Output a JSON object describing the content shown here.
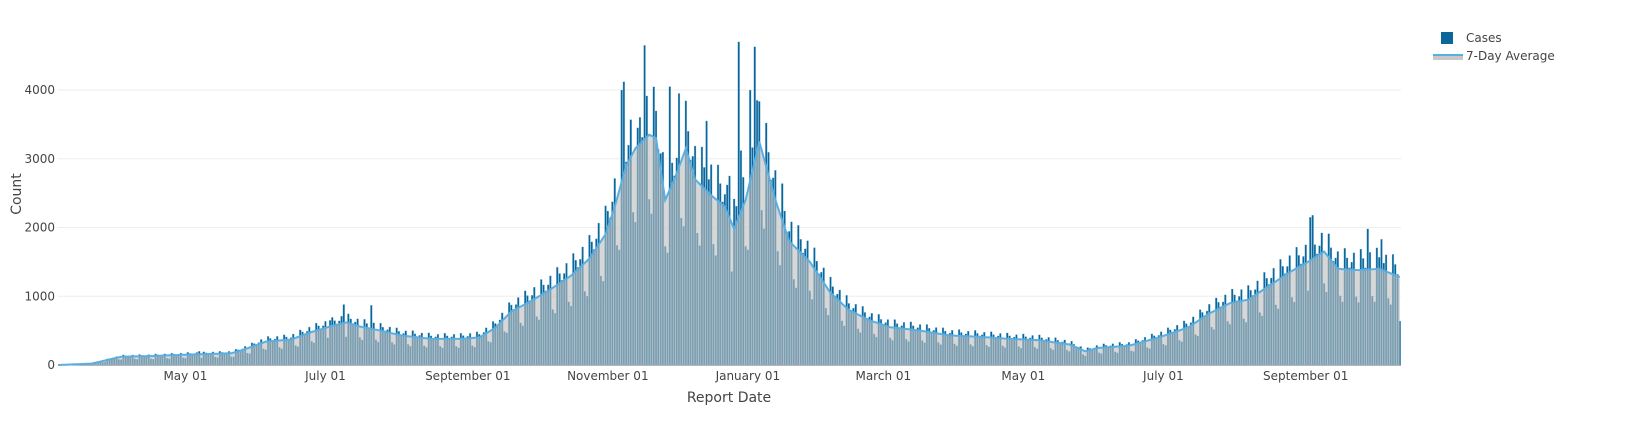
{
  "chart_data": {
    "type": "bar",
    "xlabel": "Report Date",
    "ylabel": "Count",
    "ylim": [
      0,
      4900
    ],
    "grid": true,
    "legend_position": "top-right",
    "start_date": "2020-03-07",
    "num_days": 585,
    "y_ticks": [
      0,
      1000,
      2000,
      3000,
      4000
    ],
    "x_ticks": [
      {
        "label": "May 01",
        "date": "2020-05-01"
      },
      {
        "label": "July 01",
        "date": "2020-07-01"
      },
      {
        "label": "September 01",
        "date": "2020-09-01"
      },
      {
        "label": "November 01",
        "date": "2020-11-01"
      },
      {
        "label": "January 01",
        "date": "2021-01-01"
      },
      {
        "label": "March 01",
        "date": "2021-03-01"
      },
      {
        "label": "May 01",
        "date": "2021-05-01"
      },
      {
        "label": "July 01",
        "date": "2021-07-01"
      },
      {
        "label": "September 01",
        "date": "2021-09-01"
      }
    ],
    "series": [
      {
        "name": "Cases",
        "kind": "bar",
        "color": "#0b6699"
      },
      {
        "name": "7-Day Average",
        "kind": "area-line",
        "color": "#5aaee0",
        "fill": "#c8c8c8"
      }
    ],
    "average_knots_day_value": [
      [
        0,
        0
      ],
      [
        14,
        20
      ],
      [
        18,
        50
      ],
      [
        27,
        120
      ],
      [
        40,
        130
      ],
      [
        55,
        150
      ],
      [
        75,
        170
      ],
      [
        81,
        230
      ],
      [
        90,
        340
      ],
      [
        101,
        370
      ],
      [
        110,
        480
      ],
      [
        118,
        560
      ],
      [
        125,
        620
      ],
      [
        131,
        560
      ],
      [
        140,
        500
      ],
      [
        149,
        430
      ],
      [
        162,
        380
      ],
      [
        175,
        380
      ],
      [
        183,
        400
      ],
      [
        190,
        540
      ],
      [
        197,
        780
      ],
      [
        205,
        920
      ],
      [
        214,
        1100
      ],
      [
        223,
        1300
      ],
      [
        231,
        1550
      ],
      [
        238,
        1900
      ],
      [
        242,
        2300
      ],
      [
        247,
        2900
      ],
      [
        251,
        3150
      ],
      [
        257,
        3350
      ],
      [
        260,
        3300
      ],
      [
        264,
        2400
      ],
      [
        268,
        2700
      ],
      [
        273,
        3150
      ],
      [
        277,
        2700
      ],
      [
        283,
        2500
      ],
      [
        290,
        2300
      ],
      [
        294,
        1980
      ],
      [
        299,
        2400
      ],
      [
        305,
        3250
      ],
      [
        312,
        2400
      ],
      [
        318,
        1800
      ],
      [
        327,
        1500
      ],
      [
        336,
        1050
      ],
      [
        344,
        800
      ],
      [
        353,
        650
      ],
      [
        362,
        550
      ],
      [
        375,
        500
      ],
      [
        388,
        430
      ],
      [
        401,
        410
      ],
      [
        414,
        380
      ],
      [
        427,
        360
      ],
      [
        440,
        300
      ],
      [
        447,
        200
      ],
      [
        453,
        250
      ],
      [
        466,
        280
      ],
      [
        479,
        400
      ],
      [
        492,
        550
      ],
      [
        501,
        750
      ],
      [
        510,
        900
      ],
      [
        518,
        950
      ],
      [
        527,
        1150
      ],
      [
        536,
        1350
      ],
      [
        544,
        1500
      ],
      [
        551,
        1650
      ],
      [
        557,
        1400
      ],
      [
        566,
        1380
      ],
      [
        575,
        1400
      ],
      [
        584,
        1280
      ]
    ],
    "day_of_week_factors": [
      1.22,
      1.12,
      1.02,
      1.08,
      1.18,
      0.72,
      0.66
    ],
    "daily_spikes_day_value": [
      [
        61,
        200
      ],
      [
        118,
        650
      ],
      [
        124,
        880
      ],
      [
        136,
        870
      ],
      [
        245,
        4000
      ],
      [
        246,
        4120
      ],
      [
        252,
        3450
      ],
      [
        255,
        4650
      ],
      [
        266,
        4050
      ],
      [
        270,
        3950
      ],
      [
        282,
        3550
      ],
      [
        292,
        2750
      ],
      [
        296,
        4700
      ],
      [
        297,
        3120
      ],
      [
        301,
        4000
      ],
      [
        303,
        4630
      ],
      [
        304,
        3850
      ],
      [
        315,
        2640
      ],
      [
        546,
        2180
      ],
      [
        545,
        2150
      ],
      [
        570,
        1980
      ],
      [
        576,
        1830
      ],
      [
        584,
        640
      ]
    ]
  }
}
